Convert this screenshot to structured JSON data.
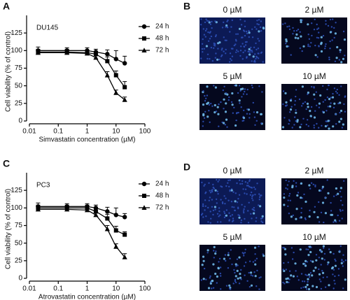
{
  "chart_data": [
    {
      "type": "line",
      "panel_label": "A",
      "annotation": "DU145",
      "x_label": "Simvastatin concentration (µM)",
      "y_label": "Cell viability (% of control)",
      "xscale": "log",
      "xlim": [
        0.01,
        100
      ],
      "xticks": [
        0.01,
        0.1,
        1,
        10,
        100
      ],
      "ylim": [
        0,
        150
      ],
      "yticks": [
        0,
        25,
        50,
        75,
        100,
        125
      ],
      "x": [
        0.02,
        0.2,
        1,
        2,
        5,
        10,
        20
      ],
      "series": [
        {
          "name": "24 h",
          "marker": "circle",
          "color": "#000000",
          "values": [
            100,
            100,
            100,
            98,
            95,
            88,
            82
          ],
          "errors": [
            5,
            4,
            4,
            4,
            6,
            12,
            10
          ]
        },
        {
          "name": "48 h",
          "marker": "square",
          "color": "#000000",
          "values": [
            98,
            98,
            97,
            95,
            85,
            65,
            48
          ],
          "errors": [
            4,
            4,
            4,
            4,
            6,
            6,
            8
          ]
        },
        {
          "name": "72 h",
          "marker": "triangle",
          "color": "#000000",
          "values": [
            97,
            97,
            96,
            90,
            65,
            40,
            30
          ],
          "errors": [
            4,
            4,
            4,
            4,
            5,
            4,
            4
          ]
        }
      ]
    },
    {
      "type": "line",
      "panel_label": "C",
      "annotation": "PC3",
      "x_label": "Atrovastatin concentration (µM)",
      "y_label": "Cell viability (% of control)",
      "xscale": "log",
      "xlim": [
        0.01,
        100
      ],
      "xticks": [
        0.01,
        0.1,
        1,
        10,
        100
      ],
      "ylim": [
        0,
        150
      ],
      "yticks": [
        0,
        25,
        50,
        75,
        100,
        125
      ],
      "x": [
        0.02,
        0.2,
        1,
        2,
        5,
        10,
        20
      ],
      "series": [
        {
          "name": "24 h",
          "marker": "circle",
          "color": "#000000",
          "values": [
            102,
            102,
            102,
            100,
            95,
            90,
            87
          ],
          "errors": [
            5,
            4,
            4,
            4,
            6,
            10,
            5
          ]
        },
        {
          "name": "48 h",
          "marker": "square",
          "color": "#000000",
          "values": [
            100,
            100,
            100,
            95,
            85,
            68,
            62
          ],
          "errors": [
            4,
            4,
            4,
            4,
            6,
            6,
            4
          ]
        },
        {
          "name": "72 h",
          "marker": "triangle",
          "color": "#000000",
          "values": [
            98,
            98,
            97,
            90,
            70,
            45,
            30
          ],
          "errors": [
            4,
            4,
            4,
            4,
            5,
            4,
            5
          ]
        }
      ]
    }
  ],
  "images": [
    {
      "panel_label": "B",
      "labels": [
        "0 µM",
        "2 µM",
        "5 µM",
        "10 µM"
      ]
    },
    {
      "panel_label": "D",
      "labels": [
        "0 µM",
        "2 µM",
        "5 µM",
        "10 µM"
      ]
    }
  ]
}
